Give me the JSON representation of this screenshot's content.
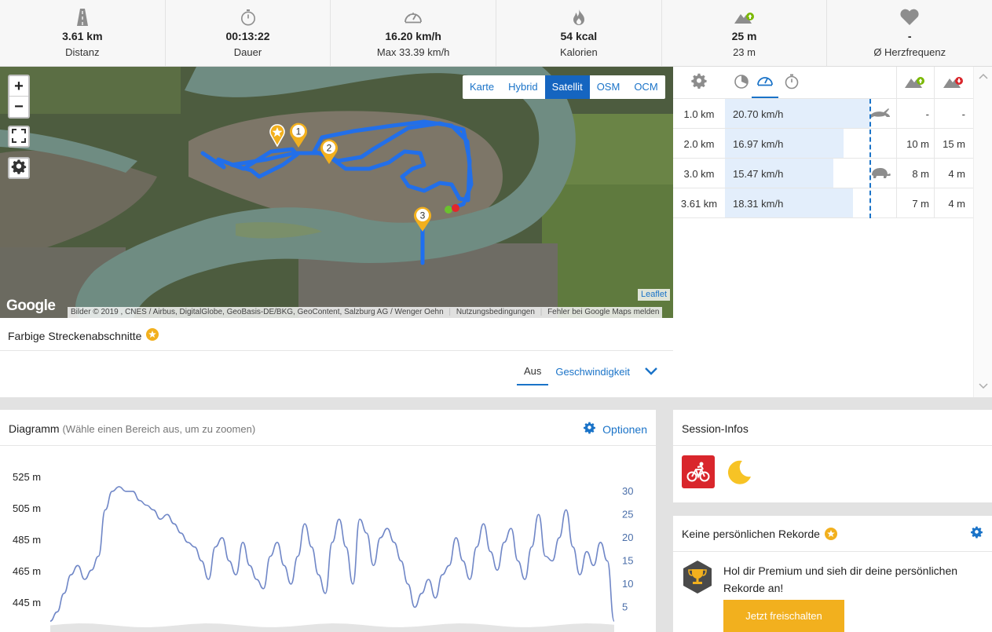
{
  "stats": [
    {
      "icon": "road-icon",
      "value": "3.61 km",
      "label": "Distanz"
    },
    {
      "icon": "stopwatch-icon",
      "value": "00:13:22",
      "label": "Dauer"
    },
    {
      "icon": "speedometer-icon",
      "value": "16.20 km/h",
      "label": "Max 33.39 km/h"
    },
    {
      "icon": "flame-icon",
      "value": "54 kcal",
      "label": "Kalorien"
    },
    {
      "icon": "elevation-up-icon",
      "value": "25 m",
      "label": "23 m"
    },
    {
      "icon": "heart-icon",
      "value": "-",
      "label": "Ø Herzfrequenz"
    }
  ],
  "map": {
    "zoom_in": "+",
    "zoom_out": "−",
    "layers": [
      "Karte",
      "Hybrid",
      "Satellit",
      "OSM",
      "OCM"
    ],
    "active_layer": "Satellit",
    "markers": [
      "1",
      "2",
      "3"
    ],
    "google_logo": "Google",
    "attribution": "Bilder © 2019 , CNES / Airbus, DigitalGlobe, GeoBasis-DE/BKG, GeoContent, Salzburg AG / Wenger Oehn",
    "terms": "Nutzungsbedingungen",
    "report": "Fehler bei Google Maps melden",
    "leaflet": "Leaflet"
  },
  "segments": {
    "title": "Farbige Streckenabschnitte",
    "tabs": [
      "Aus",
      "Geschwindigkeit"
    ],
    "active_tab": "Aus"
  },
  "laps": {
    "rows": [
      {
        "km": "1.0 km",
        "speed": "20.70 km/h",
        "speed_value": 20.7,
        "marker": "hare-icon",
        "up": "-",
        "down": "-"
      },
      {
        "km": "2.0 km",
        "speed": "16.97 km/h",
        "speed_value": 16.97,
        "marker": "",
        "up": "10 m",
        "down": "15 m"
      },
      {
        "km": "3.0 km",
        "speed": "15.47 km/h",
        "speed_value": 15.47,
        "marker": "tortoise-icon",
        "up": "8 m",
        "down": "4 m"
      },
      {
        "km": "3.61 km",
        "speed": "18.31 km/h",
        "speed_value": 18.31,
        "marker": "",
        "up": "7 m",
        "down": "4 m"
      }
    ],
    "average_speed": 16.2
  },
  "diagram": {
    "title": "Diagramm",
    "subtitle": "(Wähle einen Bereich aus, um zu zoomen)",
    "options": "Optionen"
  },
  "chart_data": {
    "type": "line",
    "y_left_ticks": [
      "525 m",
      "505 m",
      "485 m",
      "465 m",
      "445 m"
    ],
    "y_right_ticks": [
      "30",
      "25",
      "20",
      "15",
      "10",
      "5"
    ],
    "series": [
      {
        "values": [
          2,
          4,
          8,
          12,
          14,
          11,
          13,
          16,
          26,
          30,
          31,
          30,
          30,
          28,
          27,
          26,
          24,
          25,
          23,
          21,
          19,
          18,
          15,
          11,
          18,
          20,
          15,
          12,
          19,
          14,
          11,
          9,
          16,
          19,
          14,
          10,
          16,
          23,
          18,
          12,
          8,
          19,
          24,
          18,
          10,
          24,
          21,
          14,
          20,
          22,
          19,
          15,
          10,
          5,
          8,
          11,
          7,
          12,
          14,
          20,
          15,
          11,
          18,
          23,
          17,
          13,
          19,
          22,
          15,
          11,
          18,
          25,
          16,
          15,
          20,
          26,
          18,
          12,
          17,
          14,
          19,
          15,
          2
        ],
        "right_axis": true
      }
    ],
    "grey_area": "elevation"
  },
  "session": {
    "title": "Session-Infos",
    "sport_icon": "cycling-icon",
    "daytime_icon": "moon-icon"
  },
  "records": {
    "title": "Keine persönlichen Rekorde",
    "message": "Hol dir Premium und sieh dir deine persönlichen Rekorde an!",
    "button": "Jetzt freischalten"
  },
  "colors": {
    "accent": "#1a73c8",
    "track": "#1e6ff0",
    "marker": "#f2b01e",
    "button": "#f2b01e",
    "bike_tile": "#d9262c"
  }
}
